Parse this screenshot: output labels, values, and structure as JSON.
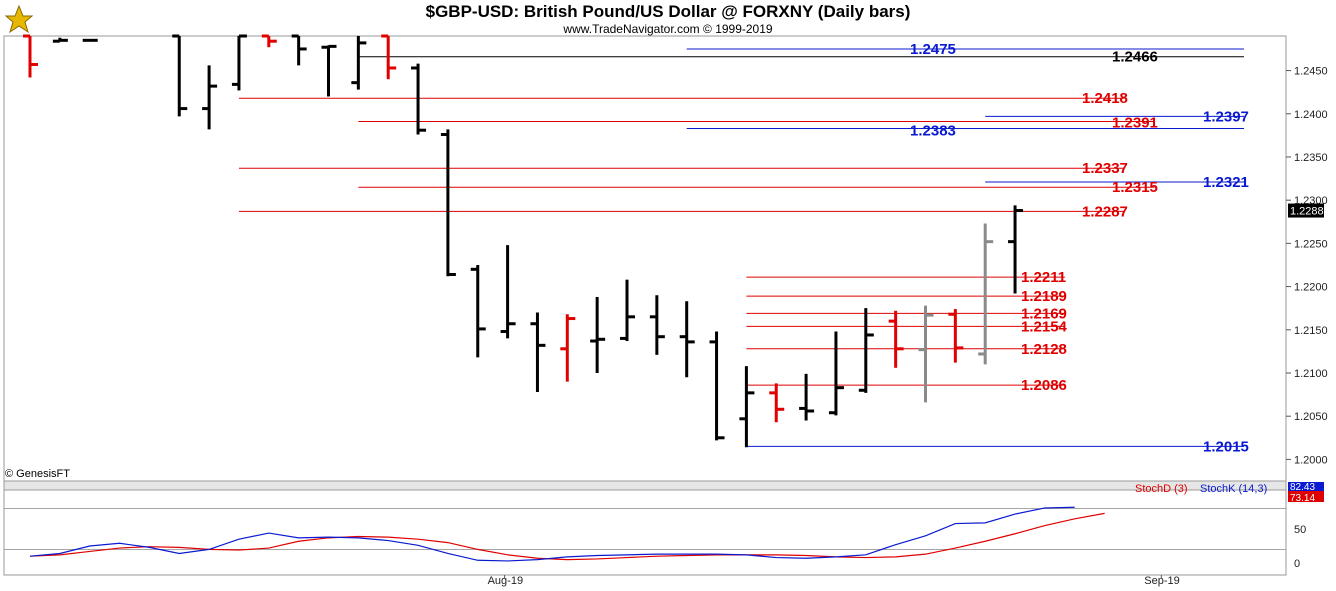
{
  "header": {
    "title": "$GBP-USD:  British Pound/US Dollar @ FORXNY  (Daily bars)",
    "subtitle": "www.TradeNavigator.com © 1999-2019",
    "copyright": "© GenesisFT"
  },
  "colors": {
    "up": "#000000",
    "down": "#e00000",
    "neutral": "#8a8a8a",
    "blue": "#0a1ad0",
    "red": "#e00000"
  },
  "chart_data": [
    {
      "type": "ohlc",
      "title": "$GBP-USD:  British Pound/US Dollar @ FORXNY  (Daily bars)",
      "ylim": [
        1.1975,
        1.249
      ],
      "yticks": [
        "1.2000",
        "1.2050",
        "1.2100",
        "1.2150",
        "1.2200",
        "1.2250",
        "1.2300",
        "1.2350",
        "1.2400",
        "1.2450"
      ],
      "xticks": [
        {
          "label": "Aug-19",
          "index": 16
        },
        {
          "label": "Sep-19",
          "index": 38
        }
      ],
      "last_price": "1.2288",
      "bars": [
        {
          "i": 0,
          "o": 1.249,
          "h": 1.249,
          "l": 1.2442,
          "c": 1.2457,
          "col": "down"
        },
        {
          "i": 1,
          "o": 1.2484,
          "h": 1.2488,
          "l": 1.2484,
          "c": 1.2485,
          "col": "up"
        },
        {
          "i": 2,
          "o": 1.2485,
          "h": 1.2486,
          "l": 1.2484,
          "c": 1.2485,
          "col": "up"
        },
        {
          "i": 5,
          "o": 1.249,
          "h": 1.249,
          "l": 1.2397,
          "c": 1.2406,
          "col": "up"
        },
        {
          "i": 6,
          "o": 1.2406,
          "h": 1.2456,
          "l": 1.2382,
          "c": 1.2432,
          "col": "up"
        },
        {
          "i": 7,
          "o": 1.2434,
          "h": 1.249,
          "l": 1.2427,
          "c": 1.249,
          "col": "up"
        },
        {
          "i": 8,
          "o": 1.249,
          "h": 1.249,
          "l": 1.2477,
          "c": 1.2484,
          "col": "down"
        },
        {
          "i": 9,
          "o": 1.249,
          "h": 1.249,
          "l": 1.2456,
          "c": 1.2475,
          "col": "up"
        },
        {
          "i": 10,
          "o": 1.2477,
          "h": 1.2479,
          "l": 1.242,
          "c": 1.2478,
          "col": "up"
        },
        {
          "i": 11,
          "o": 1.2436,
          "h": 1.249,
          "l": 1.2428,
          "c": 1.2482,
          "col": "up"
        },
        {
          "i": 12,
          "o": 1.249,
          "h": 1.249,
          "l": 1.244,
          "c": 1.2453,
          "col": "down"
        },
        {
          "i": 13,
          "o": 1.2453,
          "h": 1.2458,
          "l": 1.2376,
          "c": 1.2381,
          "col": "up"
        },
        {
          "i": 14,
          "o": 1.2376,
          "h": 1.2382,
          "l": 1.2212,
          "c": 1.2214,
          "col": "up"
        },
        {
          "i": 15,
          "o": 1.222,
          "h": 1.2225,
          "l": 1.2118,
          "c": 1.2151,
          "col": "up"
        },
        {
          "i": 16,
          "o": 1.2148,
          "h": 1.2248,
          "l": 1.214,
          "c": 1.2157,
          "col": "up"
        },
        {
          "i": 17,
          "o": 1.2157,
          "h": 1.217,
          "l": 1.2078,
          "c": 1.2132,
          "col": "up"
        },
        {
          "i": 18,
          "o": 1.2128,
          "h": 1.2168,
          "l": 1.209,
          "c": 1.2163,
          "col": "down"
        },
        {
          "i": 19,
          "o": 1.2137,
          "h": 1.2188,
          "l": 1.21,
          "c": 1.2139,
          "col": "up"
        },
        {
          "i": 20,
          "o": 1.214,
          "h": 1.2208,
          "l": 1.2137,
          "c": 1.2165,
          "col": "up"
        },
        {
          "i": 21,
          "o": 1.2165,
          "h": 1.219,
          "l": 1.2121,
          "c": 1.2142,
          "col": "up"
        },
        {
          "i": 22,
          "o": 1.2142,
          "h": 1.2183,
          "l": 1.2095,
          "c": 1.2136,
          "col": "up"
        },
        {
          "i": 23,
          "o": 1.2136,
          "h": 1.2148,
          "l": 1.2022,
          "c": 1.2025,
          "col": "up"
        },
        {
          "i": 24,
          "o": 1.2047,
          "h": 1.2108,
          "l": 1.2014,
          "c": 1.2077,
          "col": "up"
        },
        {
          "i": 25,
          "o": 1.2077,
          "h": 1.2088,
          "l": 1.2043,
          "c": 1.2058,
          "col": "down"
        },
        {
          "i": 26,
          "o": 1.2059,
          "h": 1.2099,
          "l": 1.2045,
          "c": 1.2056,
          "col": "up"
        },
        {
          "i": 27,
          "o": 1.2054,
          "h": 1.2148,
          "l": 1.2051,
          "c": 1.2083,
          "col": "up"
        },
        {
          "i": 28,
          "o": 1.208,
          "h": 1.2175,
          "l": 1.2077,
          "c": 1.2144,
          "col": "up"
        },
        {
          "i": 29,
          "o": 1.216,
          "h": 1.2172,
          "l": 1.2106,
          "c": 1.2128,
          "col": "down"
        },
        {
          "i": 30,
          "o": 1.2127,
          "h": 1.2178,
          "l": 1.2066,
          "c": 1.2167,
          "col": "neutral"
        },
        {
          "i": 31,
          "o": 1.2168,
          "h": 1.2174,
          "l": 1.2112,
          "c": 1.2129,
          "col": "down"
        },
        {
          "i": 32,
          "o": 1.2122,
          "h": 1.2273,
          "l": 1.211,
          "c": 1.2252,
          "col": "neutral"
        },
        {
          "i": 33,
          "o": 1.2252,
          "h": 1.2294,
          "l": 1.2192,
          "c": 1.2288,
          "col": "up"
        }
      ],
      "levels": [
        {
          "label": "1.2475",
          "value": 1.2475,
          "color": "blue",
          "from": 22,
          "to": 40,
          "text_at": "left"
        },
        {
          "label": "1.2466",
          "value": 1.2466,
          "color": "up",
          "from": 11,
          "to": 40,
          "text_at": "right"
        },
        {
          "label": "1.2418",
          "value": 1.2418,
          "color": "red",
          "from": 7,
          "to": 36,
          "text_at": "right"
        },
        {
          "label": "1.2397",
          "value": 1.2397,
          "color": "blue",
          "from": 32,
          "to": 40,
          "text_at": "right"
        },
        {
          "label": "1.2391",
          "value": 1.2391,
          "color": "red",
          "from": 11,
          "to": 37,
          "text_at": "right"
        },
        {
          "label": "1.2383",
          "value": 1.2383,
          "color": "blue",
          "from": 22,
          "to": 40,
          "text_at": "left"
        },
        {
          "label": "1.2337",
          "value": 1.2337,
          "color": "red",
          "from": 7,
          "to": 36,
          "text_at": "right"
        },
        {
          "label": "1.2321",
          "value": 1.2321,
          "color": "blue",
          "from": 32,
          "to": 40,
          "text_at": "right"
        },
        {
          "label": "1.2315",
          "value": 1.2315,
          "color": "red",
          "from": 11,
          "to": 37,
          "text_at": "right"
        },
        {
          "label": "1.2287",
          "value": 1.2287,
          "color": "red",
          "from": 7,
          "to": 36,
          "text_at": "right"
        },
        {
          "label": "1.2211",
          "value": 1.2211,
          "color": "red",
          "from": 24,
          "to": 34,
          "text_at": "right"
        },
        {
          "label": "1.2189",
          "value": 1.2189,
          "color": "red",
          "from": 24,
          "to": 34,
          "text_at": "right"
        },
        {
          "label": "1.2169",
          "value": 1.2169,
          "color": "red",
          "from": 24,
          "to": 34,
          "text_at": "right"
        },
        {
          "label": "1.2154",
          "value": 1.2154,
          "color": "red",
          "from": 24,
          "to": 34,
          "text_at": "right"
        },
        {
          "label": "1.2128",
          "value": 1.2128,
          "color": "red",
          "from": 24,
          "to": 34,
          "text_at": "right"
        },
        {
          "label": "1.2086",
          "value": 1.2086,
          "color": "red",
          "from": 24,
          "to": 34,
          "text_at": "right"
        },
        {
          "label": "1.2015",
          "value": 1.2015,
          "color": "blue",
          "from": 24,
          "to": 40,
          "text_at": "right"
        }
      ]
    },
    {
      "type": "line",
      "ylim": [
        0,
        100
      ],
      "yticks": [
        "0",
        "50"
      ],
      "last_values": {
        "stochK": "82.43",
        "stochD": "73.14"
      },
      "series": [
        {
          "name": "StochD (3)",
          "color": "red",
          "values": [
            10,
            12,
            17,
            22,
            24,
            23,
            20,
            19,
            22,
            32,
            37,
            39,
            38,
            35,
            30,
            20,
            12,
            7,
            5,
            6,
            8,
            10,
            11,
            12,
            12,
            12,
            11,
            9,
            8,
            9,
            13,
            22,
            32,
            43,
            55,
            65,
            73
          ]
        },
        {
          "name": "StochK (14,3)",
          "color": "blue",
          "values": [
            10,
            14,
            25,
            29,
            23,
            14,
            20,
            35,
            44,
            37,
            38,
            37,
            33,
            26,
            14,
            4,
            3,
            5,
            9,
            11,
            12,
            13,
            13,
            13,
            12,
            8,
            7,
            9,
            12,
            27,
            40,
            58,
            59,
            72,
            81,
            82
          ]
        }
      ]
    }
  ]
}
